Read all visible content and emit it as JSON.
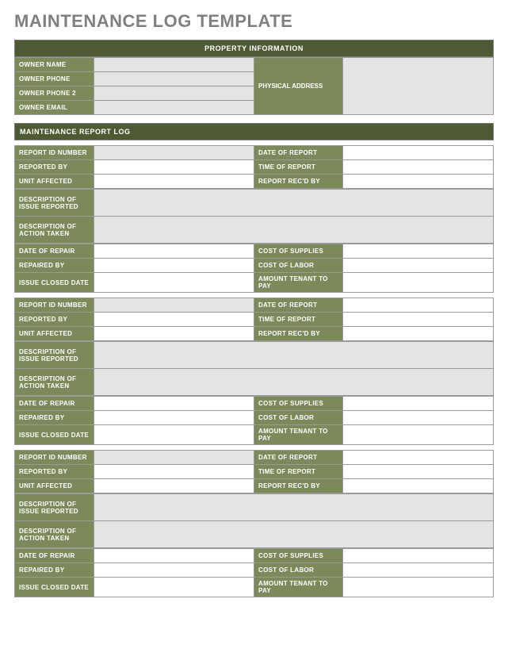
{
  "title": "MAINTENANCE LOG TEMPLATE",
  "colors": {
    "header_dark": "#4d5a33",
    "label_bg": "#7c8a5b",
    "value_bg": "#e4e4e4",
    "value_white": "#ffffff",
    "border": "#9a9a9a",
    "title_color": "#808080"
  },
  "property": {
    "section_title": "PROPERTY INFORMATION",
    "labels": {
      "owner_name": "OWNER NAME",
      "owner_phone": "OWNER PHONE",
      "owner_phone2": "OWNER PHONE 2",
      "owner_email": "OWNER EMAIL",
      "physical_address": "PHYSICAL ADDRESS"
    },
    "values": {
      "owner_name": "",
      "owner_phone": "",
      "owner_phone2": "",
      "owner_email": "",
      "physical_address": ""
    }
  },
  "log_section_title": "MAINTENANCE REPORT LOG",
  "field_labels": {
    "report_id": "REPORT ID NUMBER",
    "date_of_report": "DATE OF REPORT",
    "reported_by": "REPORTED BY",
    "time_of_report": "TIME OF REPORT",
    "unit_affected": "UNIT AFFECTED",
    "report_recd_by": "REPORT REC'D BY",
    "desc_issue": "DESCRIPTION OF ISSUE REPORTED",
    "desc_action": "DESCRIPTION OF ACTION TAKEN",
    "date_of_repair": "DATE OF REPAIR",
    "cost_supplies": "COST OF SUPPLIES",
    "repaired_by": "REPAIRED BY",
    "cost_labor": "COST OF LABOR",
    "issue_closed": "ISSUE CLOSED DATE",
    "amount_tenant": "AMOUNT TENANT TO PAY"
  },
  "entries": [
    {
      "report_id": "",
      "date_of_report": "",
      "reported_by": "",
      "time_of_report": "",
      "unit_affected": "",
      "report_recd_by": "",
      "desc_issue": "",
      "desc_action": "",
      "date_of_repair": "",
      "cost_supplies": "",
      "repaired_by": "",
      "cost_labor": "",
      "issue_closed": "",
      "amount_tenant": ""
    },
    {
      "report_id": "",
      "date_of_report": "",
      "reported_by": "",
      "time_of_report": "",
      "unit_affected": "",
      "report_recd_by": "",
      "desc_issue": "",
      "desc_action": "",
      "date_of_repair": "",
      "cost_supplies": "",
      "repaired_by": "",
      "cost_labor": "",
      "issue_closed": "",
      "amount_tenant": ""
    },
    {
      "report_id": "",
      "date_of_report": "",
      "reported_by": "",
      "time_of_report": "",
      "unit_affected": "",
      "report_recd_by": "",
      "desc_issue": "",
      "desc_action": "",
      "date_of_repair": "",
      "cost_supplies": "",
      "repaired_by": "",
      "cost_labor": "",
      "issue_closed": "",
      "amount_tenant": ""
    }
  ]
}
